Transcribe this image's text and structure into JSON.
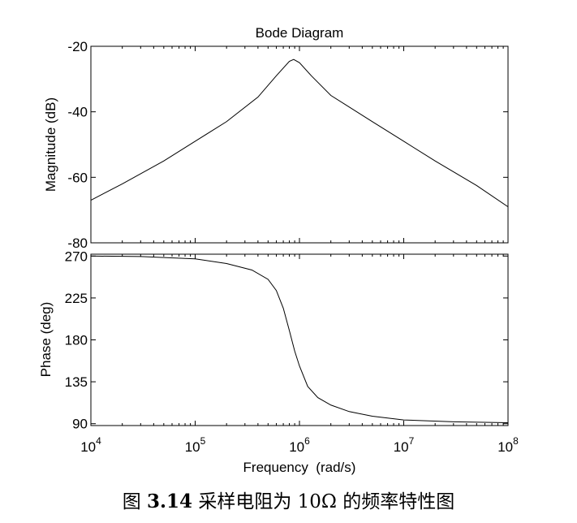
{
  "chart_data": [
    {
      "type": "line",
      "panel": "magnitude",
      "title": "Bode Diagram",
      "xlabel": "",
      "ylabel": "Magnitude (dB)",
      "xscale": "log",
      "xlim": [
        10000,
        100000000
      ],
      "ylim": [
        -80,
        -20
      ],
      "yticks": [
        -20,
        -40,
        -60,
        -80
      ],
      "grid": false,
      "series": [
        {
          "name": "magnitude",
          "x": [
            10000,
            20000,
            50000,
            100000,
            200000,
            400000,
            600000,
            800000,
            880000,
            1000000,
            1300000,
            2000000,
            5000000,
            10000000,
            20000000,
            50000000,
            100000000
          ],
          "y": [
            -67,
            -62,
            -55,
            -49,
            -43,
            -35.5,
            -29,
            -24.6,
            -24,
            -25,
            -29,
            -35,
            -43,
            -49,
            -55,
            -62.5,
            -69
          ]
        }
      ]
    },
    {
      "type": "line",
      "panel": "phase",
      "title": "",
      "xlabel": "Frequency  (rad/s)",
      "ylabel": "Phase (deg)",
      "xscale": "log",
      "xlim": [
        10000,
        100000000
      ],
      "ylim": [
        88,
        272
      ],
      "yticks": [
        270,
        225,
        180,
        135,
        90
      ],
      "grid": false,
      "series": [
        {
          "name": "phase",
          "x": [
            10000,
            30000,
            100000,
            200000,
            350000,
            500000,
            600000,
            700000,
            800000,
            900000,
            1000000,
            1200000,
            1500000,
            2000000,
            3000000,
            5000000,
            10000000,
            30000000,
            100000000
          ],
          "y": [
            270,
            269.5,
            267,
            262,
            255,
            245,
            233,
            214,
            190,
            168,
            152,
            130,
            118,
            110,
            103,
            98,
            94,
            92,
            91
          ]
        }
      ]
    }
  ],
  "x_ticks": [
    {
      "base": "10",
      "exp": "4"
    },
    {
      "base": "10",
      "exp": "5"
    },
    {
      "base": "10",
      "exp": "6"
    },
    {
      "base": "10",
      "exp": "7"
    },
    {
      "base": "10",
      "exp": "8"
    }
  ],
  "caption": {
    "figure_label": "图",
    "figure_number": "3.14",
    "text": "采样电阻为 10Ω 的频率特性图"
  }
}
